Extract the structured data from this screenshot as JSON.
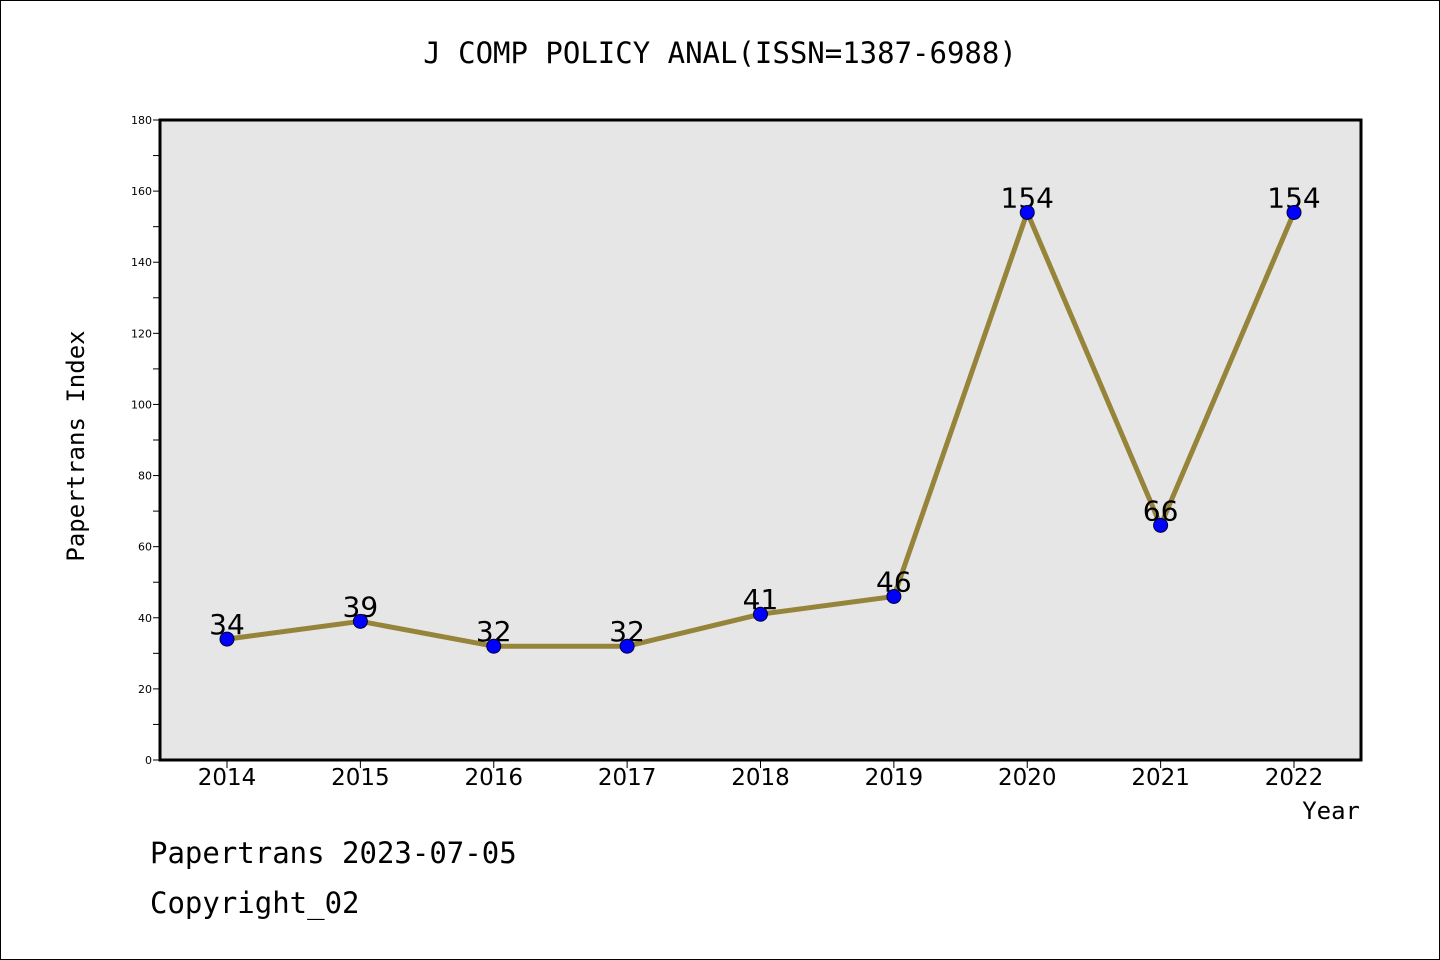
{
  "chart_data": {
    "type": "line",
    "title": "J COMP POLICY ANAL(ISSN=1387-6988)",
    "xlabel": "Year",
    "ylabel": "Papertrans Index",
    "categories": [
      "2014",
      "2015",
      "2016",
      "2017",
      "2018",
      "2019",
      "2020",
      "2021",
      "2022"
    ],
    "series": [
      {
        "values": [
          34,
          39,
          32,
          32,
          41,
          46,
          154,
          66,
          154
        ]
      }
    ],
    "data_labels": [
      "34",
      "39",
      "32",
      "32",
      "41",
      "46",
      "154",
      "66",
      "154"
    ],
    "ylim": [
      0,
      180
    ],
    "yticks": [
      0,
      20,
      40,
      60,
      80,
      100,
      120,
      140,
      160,
      180
    ],
    "yticks_minor": [
      10,
      30,
      50,
      70,
      90,
      110,
      130,
      150,
      170
    ],
    "grid": false,
    "colors": {
      "line": "#958439",
      "marker": "#0000ff",
      "plot_background": "#e6e6e6"
    }
  },
  "footer": {
    "line1": "Papertrans 2023-07-05",
    "line2": "Copyright_02"
  }
}
